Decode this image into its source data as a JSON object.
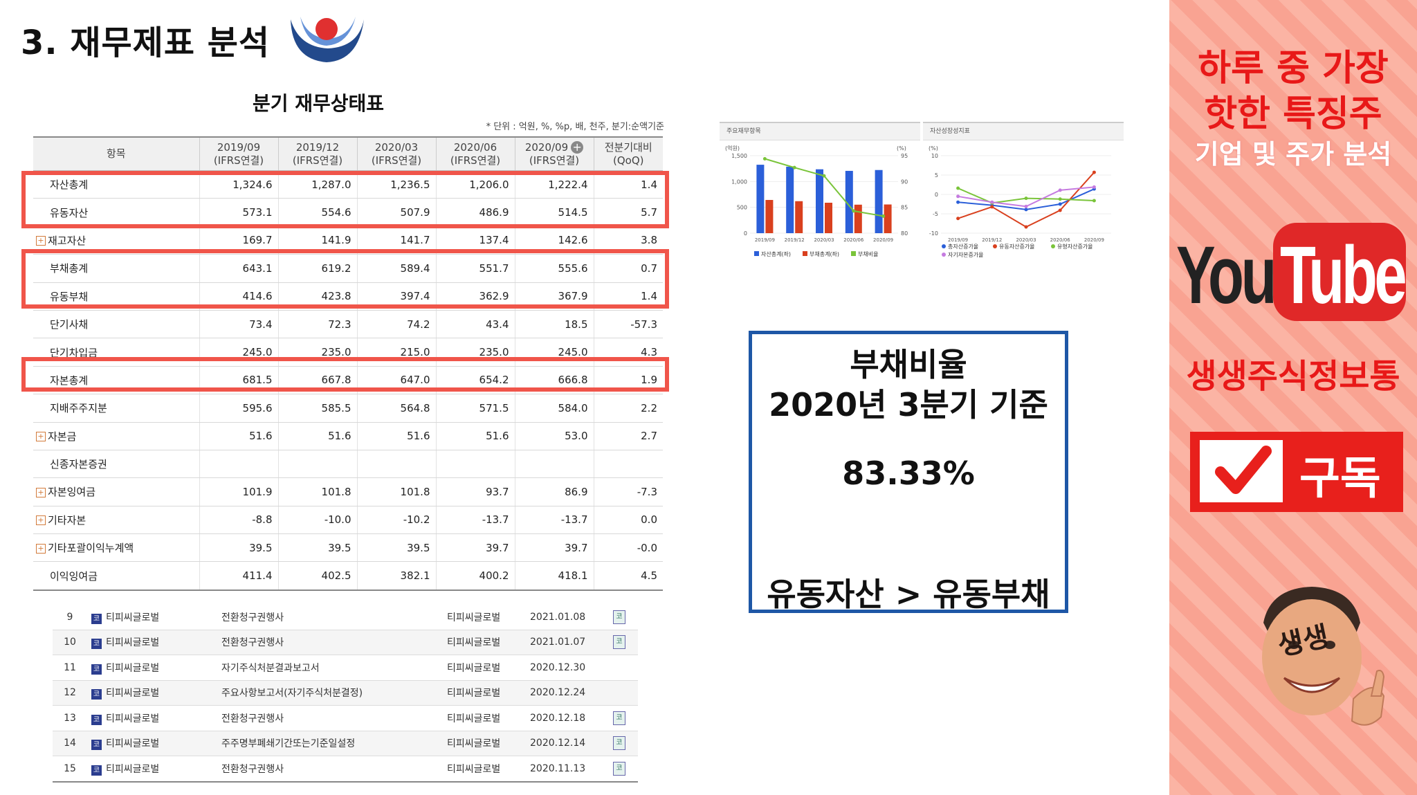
{
  "header": {
    "title": "3. 재무제표 분석",
    "table_title": "분기 재무상태표",
    "unit_note": "* 단위 : 억원, %, %p, 배, 천주, 분기:순액기준"
  },
  "balance_sheet": {
    "columns": [
      {
        "l1": "항목",
        "l2": ""
      },
      {
        "l1": "2019/09",
        "l2": "(IFRS연결)"
      },
      {
        "l1": "2019/12",
        "l2": "(IFRS연결)"
      },
      {
        "l1": "2020/03",
        "l2": "(IFRS연결)"
      },
      {
        "l1": "2020/06",
        "l2": "(IFRS연결)"
      },
      {
        "l1": "2020/09",
        "l2": "(IFRS연결)"
      },
      {
        "l1": "전분기대비",
        "l2": "(QoQ)"
      }
    ],
    "rows": [
      {
        "label": "자산총계",
        "v": [
          "1,324.6",
          "1,287.0",
          "1,236.5",
          "1,206.0",
          "1,222.4",
          "1.4"
        ]
      },
      {
        "label": "유동자산",
        "v": [
          "573.1",
          "554.6",
          "507.9",
          "486.9",
          "514.5",
          "5.7"
        ]
      },
      {
        "label": "재고자산",
        "v": [
          "169.7",
          "141.9",
          "141.7",
          "137.4",
          "142.6",
          "3.8"
        ]
      },
      {
        "label": "부채총계",
        "v": [
          "643.1",
          "619.2",
          "589.4",
          "551.7",
          "555.6",
          "0.7"
        ]
      },
      {
        "label": "유동부채",
        "v": [
          "414.6",
          "423.8",
          "397.4",
          "362.9",
          "367.9",
          "1.4"
        ]
      },
      {
        "label": "단기사채",
        "v": [
          "73.4",
          "72.3",
          "74.2",
          "43.4",
          "18.5",
          "-57.3"
        ]
      },
      {
        "label": "단기차입금",
        "v": [
          "245.0",
          "235.0",
          "215.0",
          "235.0",
          "245.0",
          "4.3"
        ]
      },
      {
        "label": "자본총계",
        "v": [
          "681.5",
          "667.8",
          "647.0",
          "654.2",
          "666.8",
          "1.9"
        ]
      },
      {
        "label": "지배주주지분",
        "v": [
          "595.6",
          "585.5",
          "564.8",
          "571.5",
          "584.0",
          "2.2"
        ]
      },
      {
        "label": "자본금",
        "v": [
          "51.6",
          "51.6",
          "51.6",
          "51.6",
          "53.0",
          "2.7"
        ]
      },
      {
        "label": "신종자본증권",
        "v": [
          "",
          "",
          "",
          "",
          "",
          ""
        ]
      },
      {
        "label": "자본잉여금",
        "v": [
          "101.9",
          "101.8",
          "101.8",
          "93.7",
          "86.9",
          "-7.3"
        ]
      },
      {
        "label": "기타자본",
        "v": [
          "-8.8",
          "-10.0",
          "-10.2",
          "-13.7",
          "-13.7",
          "0.0"
        ]
      },
      {
        "label": "기타포괄이익누계액",
        "v": [
          "39.5",
          "39.5",
          "39.5",
          "39.7",
          "39.7",
          "-0.0"
        ]
      },
      {
        "label": "이익잉여금",
        "v": [
          "411.4",
          "402.5",
          "382.1",
          "400.2",
          "418.1",
          "4.5"
        ]
      }
    ]
  },
  "disclosures": [
    {
      "no": "9",
      "company": "티피씨글로벌",
      "title": "전환청구권행사",
      "submitter": "티피씨글로벌",
      "date": "2021.01.08"
    },
    {
      "no": "10",
      "company": "티피씨글로벌",
      "title": "전환청구권행사",
      "submitter": "티피씨글로벌",
      "date": "2021.01.07"
    },
    {
      "no": "11",
      "company": "티피씨글로벌",
      "title": "자기주식처분결과보고서",
      "submitter": "티피씨글로벌",
      "date": "2020.12.30"
    },
    {
      "no": "12",
      "company": "티피씨글로벌",
      "title": "주요사항보고서(자기주식처분결정)",
      "submitter": "티피씨글로벌",
      "date": "2020.12.24"
    },
    {
      "no": "13",
      "company": "티피씨글로벌",
      "title": "전환청구권행사",
      "submitter": "티피씨글로벌",
      "date": "2020.12.18"
    },
    {
      "no": "14",
      "company": "티피씨글로벌",
      "title": "주주명부폐쇄기간또는기준일설정",
      "submitter": "티피씨글로벌",
      "date": "2020.12.14"
    },
    {
      "no": "15",
      "company": "티피씨글로벌",
      "title": "전환청구권행사",
      "submitter": "티피씨글로벌",
      "date": "2020.11.13"
    }
  ],
  "badges": {
    "ko": "코",
    "doc": "코"
  },
  "chart_data": [
    {
      "type": "bar",
      "title": "주요재무항목",
      "y_unit_left": "(억원)",
      "y_unit_right": "(%)",
      "categories": [
        "2019/09",
        "2019/12",
        "2020/03",
        "2020/06",
        "2020/09"
      ],
      "yticks_left": [
        "1,500",
        "1,000",
        "500",
        "0"
      ],
      "yticks_right": [
        "95",
        "90",
        "85",
        "80"
      ],
      "ylim": [
        0,
        1500
      ],
      "ylim_right": [
        80,
        95
      ],
      "series": [
        {
          "name": "자산총계(좌)",
          "color": "#2b5fd9",
          "values": [
            1324.6,
            1287.0,
            1236.5,
            1206.0,
            1222.4
          ]
        },
        {
          "name": "부채총계(좌)",
          "color": "#d9401e",
          "values": [
            643.1,
            619.2,
            589.4,
            551.7,
            555.6
          ]
        },
        {
          "name": "부채비율",
          "color": "#7ac43a",
          "axis": "right",
          "values": [
            94.4,
            92.7,
            91.1,
            84.3,
            83.3
          ]
        }
      ]
    },
    {
      "type": "line",
      "title": "자산성장성지표",
      "y_unit": "(%)",
      "categories": [
        "2019/09",
        "2019/12",
        "2020/03",
        "2020/06",
        "2020/09"
      ],
      "yticks": [
        "10",
        "5",
        "0",
        "-5",
        "-10"
      ],
      "ylim": [
        -10,
        10
      ],
      "series": [
        {
          "name": "총자산증가율",
          "color": "#2b5fd9",
          "values": [
            -2.0,
            -2.8,
            -3.9,
            -2.5,
            1.4
          ]
        },
        {
          "name": "유동자산증가율",
          "color": "#d9401e",
          "values": [
            -6.2,
            -3.2,
            -8.4,
            -4.1,
            5.7
          ]
        },
        {
          "name": "유형자산증가율",
          "color": "#7ac43a",
          "values": [
            1.6,
            -2.2,
            -1.0,
            -1.2,
            -1.6
          ]
        },
        {
          "name": "자기자본증가율",
          "color": "#c57be0",
          "values": [
            -0.5,
            -2.0,
            -3.1,
            1.1,
            1.9
          ]
        }
      ]
    }
  ],
  "ratio_box": {
    "title": "부채비율",
    "subtitle": "2020년 3분기 기준",
    "value": "83.33%",
    "compare": "유동자산 > 유동부채"
  },
  "side_panel": {
    "line1": "하루 중 가장",
    "line2": "핫한 특징주",
    "line3": "기업 및 주가 분석",
    "yt_you": "You",
    "yt_tube": "Tube",
    "channel": "생생주식정보통",
    "subscribe": "구독",
    "avatar_text": "생생"
  },
  "colors": {
    "highlight": "#f0554a",
    "brand_red": "#e81818",
    "box_blue": "#1e57a6",
    "negative": "#e00000"
  }
}
